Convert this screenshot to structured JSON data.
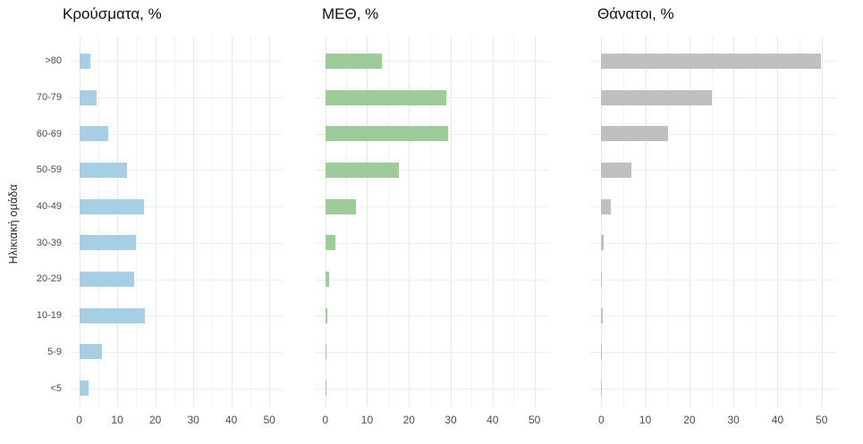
{
  "figure": {
    "y_axis_title": "Ηλικιακή ομάδα",
    "categories": [
      ">80",
      "70-79",
      "60-69",
      "50-59",
      "40-49",
      "30-39",
      "20-29",
      "10-19",
      "5-9",
      "<5"
    ],
    "x_tick_labels": [
      "0",
      "10",
      "20",
      "30",
      "40",
      "50"
    ]
  },
  "chart_data": [
    {
      "type": "bar",
      "orientation": "horizontal",
      "title": "Κρούσματα, %",
      "ylabel": "Ηλικιακή ομάδα",
      "categories": [
        ">80",
        "70-79",
        "60-69",
        "50-59",
        "40-49",
        "30-39",
        "20-29",
        "10-19",
        "5-9",
        "<5"
      ],
      "values": [
        2.8,
        4.5,
        7.7,
        12.6,
        17.0,
        14.8,
        14.5,
        17.2,
        6.0,
        2.5
      ],
      "bar_color": "#A6CFE6",
      "xlim": [
        0,
        53
      ],
      "x_ticks": [
        0,
        10,
        20,
        30,
        40,
        50
      ],
      "grid": {
        "major_step": 10,
        "minor_step": 5
      },
      "legend": "none"
    },
    {
      "type": "bar",
      "orientation": "horizontal",
      "title": "ΜΕΘ, %",
      "ylabel": "Ηλικιακή ομάδα",
      "categories": [
        ">80",
        "70-79",
        "60-69",
        "50-59",
        "40-49",
        "30-39",
        "20-29",
        "10-19",
        "5-9",
        "<5"
      ],
      "values": [
        13.5,
        29.0,
        29.3,
        17.5,
        7.4,
        2.5,
        1.0,
        0.5,
        0.2,
        0.3
      ],
      "bar_color": "#9DCB99",
      "xlim": [
        0,
        53
      ],
      "x_ticks": [
        0,
        10,
        20,
        30,
        40,
        50
      ],
      "grid": {
        "major_step": 10,
        "minor_step": 5
      },
      "legend": "none"
    },
    {
      "type": "bar",
      "orientation": "horizontal",
      "title": "Θάνατοι, %",
      "ylabel": "Ηλικιακή ομάδα",
      "categories": [
        ">80",
        "70-79",
        "60-69",
        "50-59",
        "40-49",
        "30-39",
        "20-29",
        "10-19",
        "5-9",
        "<5"
      ],
      "values": [
        49.8,
        25.0,
        15.2,
        6.8,
        2.2,
        0.6,
        0.15,
        0.3,
        0.05,
        0.15
      ],
      "bar_color": "#BFBFBF",
      "xlim": [
        0,
        53
      ],
      "x_ticks": [
        0,
        10,
        20,
        30,
        40,
        50
      ],
      "grid": {
        "major_step": 10,
        "minor_step": 5
      },
      "legend": "none"
    }
  ],
  "style": {
    "background": "#FFFFFF",
    "grid_major_color": "#E7E7E7",
    "grid_minor_color": "#F2F2F2",
    "row_grid_color": "#EFEFEF",
    "axis_label_color": "#4D4D4D",
    "title_color": "#111111"
  }
}
